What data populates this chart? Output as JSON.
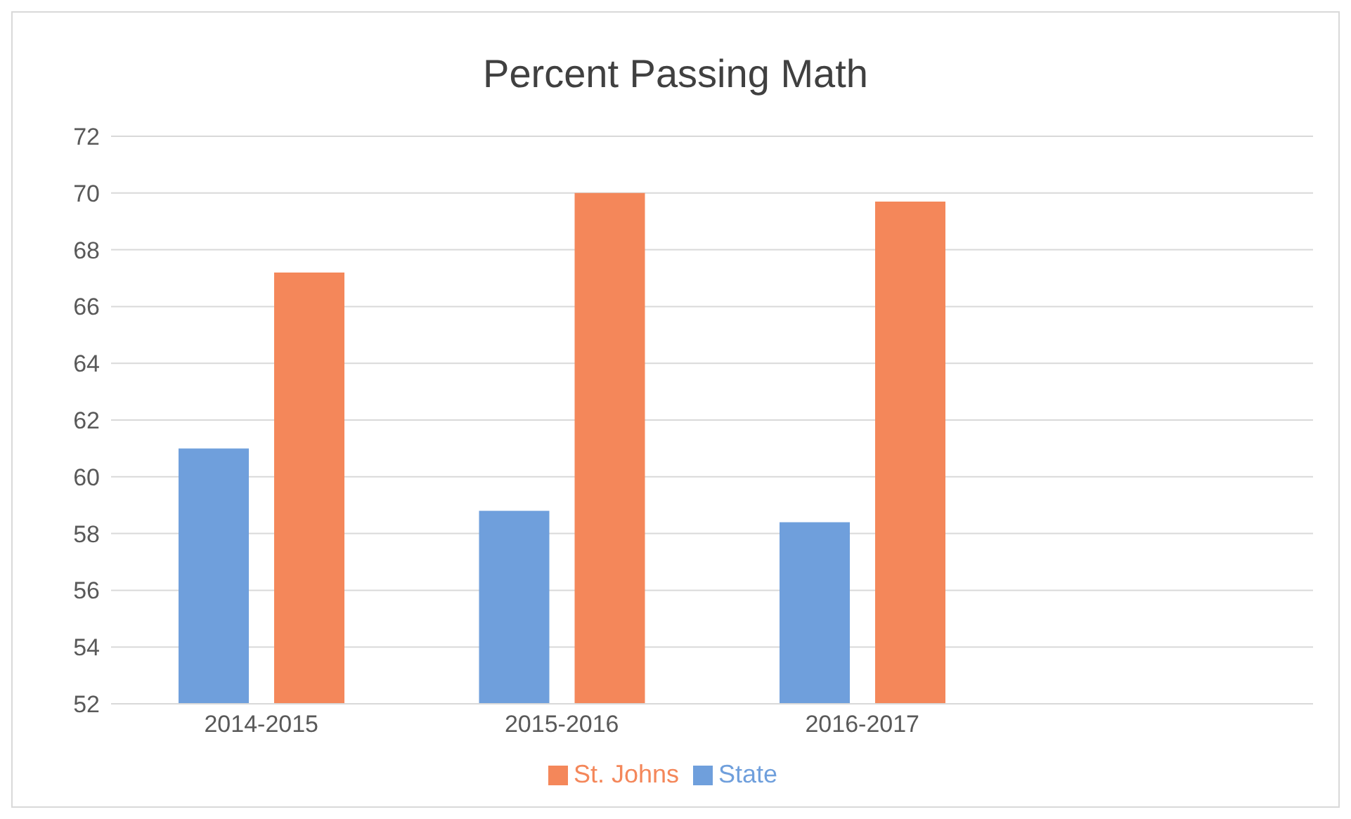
{
  "chart_data": {
    "type": "bar",
    "title": "Percent Passing Math",
    "categories": [
      "2014-2015",
      "2015-2016",
      "2016-2017",
      null
    ],
    "series": [
      {
        "name": "State",
        "color": "#6f9fdc",
        "values": [
          61.0,
          58.8,
          58.4,
          null
        ]
      },
      {
        "name": "St. Johns",
        "color": "#f4875a",
        "values": [
          67.2,
          70.0,
          69.7,
          null
        ]
      }
    ],
    "ylim": [
      52,
      72
    ],
    "yticks": [
      52,
      54,
      56,
      58,
      60,
      62,
      64,
      66,
      68,
      70,
      72
    ],
    "grid": "y",
    "legend": "bottom"
  }
}
